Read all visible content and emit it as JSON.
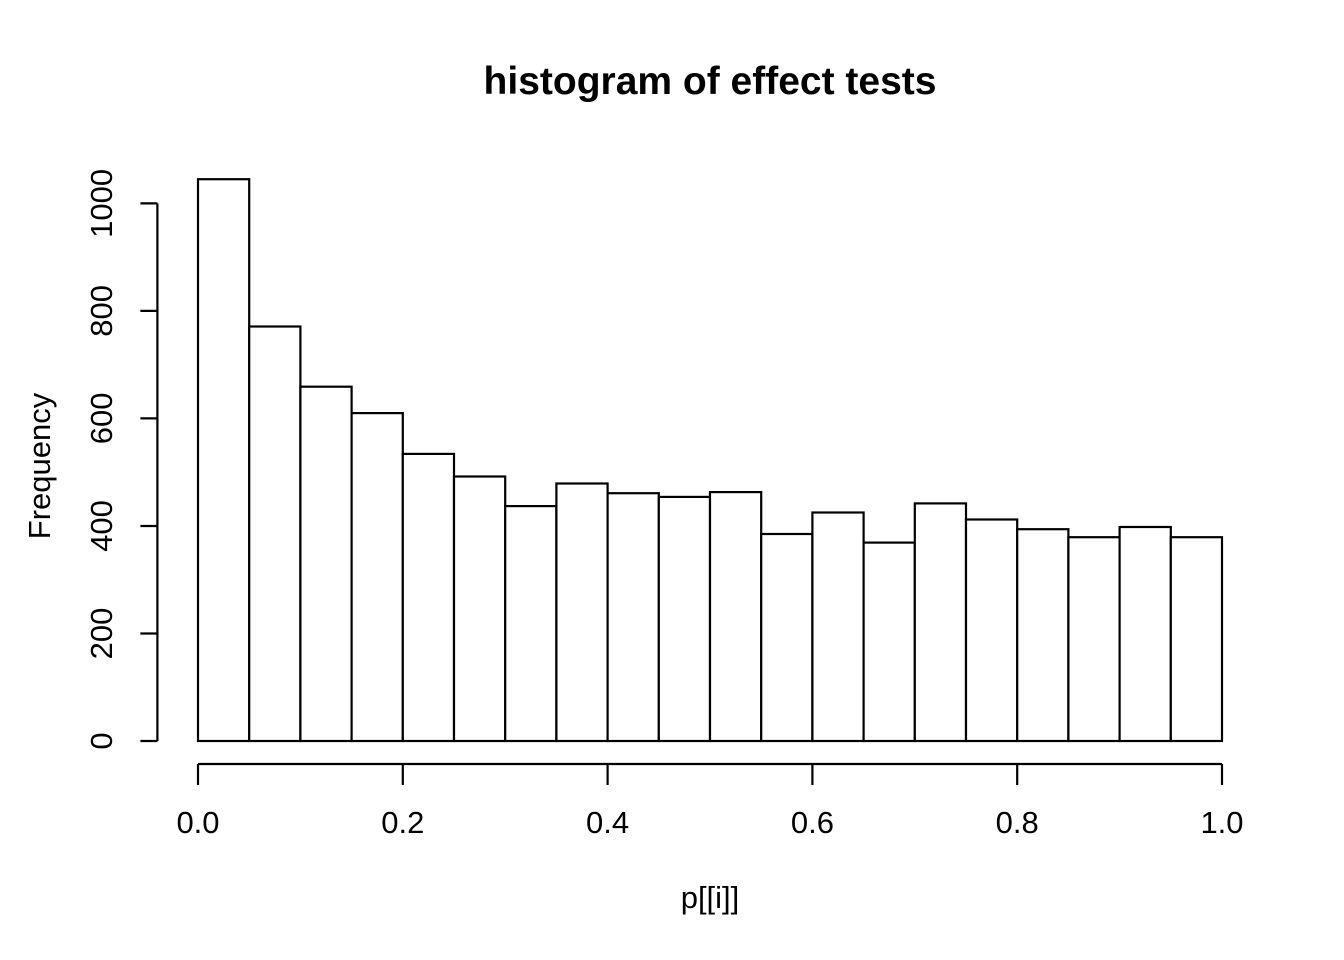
{
  "chart_data": {
    "type": "bar",
    "subtype": "histogram",
    "title": "histogram of effect tests",
    "xlabel": "p[[i]]",
    "ylabel": "Frequency",
    "bin_edges": [
      0.0,
      0.05,
      0.1,
      0.15,
      0.2,
      0.25,
      0.3,
      0.35,
      0.4,
      0.45,
      0.5,
      0.55,
      0.6,
      0.65,
      0.7,
      0.75,
      0.8,
      0.85,
      0.9,
      0.95,
      1.0
    ],
    "values": [
      1045,
      771,
      659,
      610,
      534,
      492,
      437,
      479,
      461,
      454,
      463,
      385,
      425,
      369,
      442,
      412,
      394,
      379,
      398,
      379
    ],
    "xlim": [
      0.0,
      1.0
    ],
    "ylim": [
      0,
      1000
    ],
    "x_ticks": [
      {
        "value": 0.0,
        "label": "0.0"
      },
      {
        "value": 0.2,
        "label": "0.2"
      },
      {
        "value": 0.4,
        "label": "0.4"
      },
      {
        "value": 0.6,
        "label": "0.6"
      },
      {
        "value": 0.8,
        "label": "0.8"
      },
      {
        "value": 1.0,
        "label": "1.0"
      }
    ],
    "y_ticks": [
      {
        "value": 0,
        "label": "0"
      },
      {
        "value": 200,
        "label": "200"
      },
      {
        "value": 400,
        "label": "400"
      },
      {
        "value": 600,
        "label": "600"
      },
      {
        "value": 800,
        "label": "800"
      },
      {
        "value": 1000,
        "label": "1000"
      }
    ],
    "grid": false,
    "legend": false,
    "colors": {
      "bar_fill": "#ffffff",
      "bar_stroke": "#000000",
      "axis": "#000000",
      "text": "#000000",
      "background": "#ffffff"
    }
  }
}
